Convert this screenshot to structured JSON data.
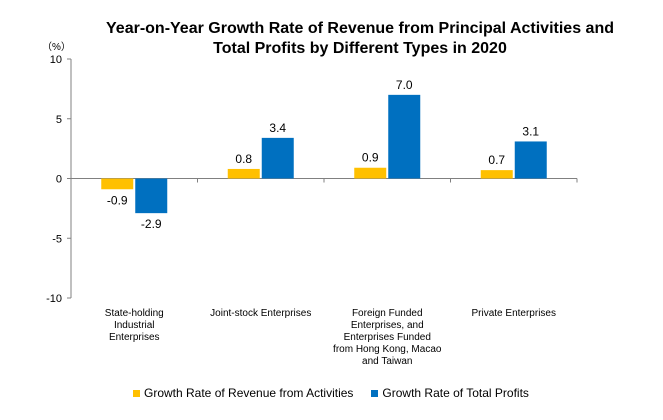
{
  "chart_data": {
    "type": "bar",
    "title_line1": "Year-on-Year Growth Rate of Revenue from Principal Activities  and",
    "title_line2": "Total Profits  by Different Types in 2020",
    "unit_label": "（%）",
    "categories": [
      [
        "State-holding",
        "Industrial",
        "Enterprises"
      ],
      [
        "Joint-stock Enterprises"
      ],
      [
        "Foreign Funded",
        "Enterprises, and",
        "Enterprises Funded",
        "from Hong Kong, Macao",
        "and Taiwan"
      ],
      [
        "Private Enterprises"
      ]
    ],
    "series": [
      {
        "name": "Growth Rate of Revenue from Activities",
        "values": [
          -0.9,
          0.8,
          0.9,
          0.7
        ],
        "color": "#FFC000"
      },
      {
        "name": "Growth Rate of Total Profits",
        "values": [
          -2.9,
          3.4,
          7.0,
          3.1
        ],
        "color": "#0070C0"
      }
    ],
    "ylim": [
      -10,
      10
    ],
    "yticks": [
      -10,
      -5,
      0,
      5,
      10
    ],
    "grid": false,
    "legend_position": "bottom"
  }
}
